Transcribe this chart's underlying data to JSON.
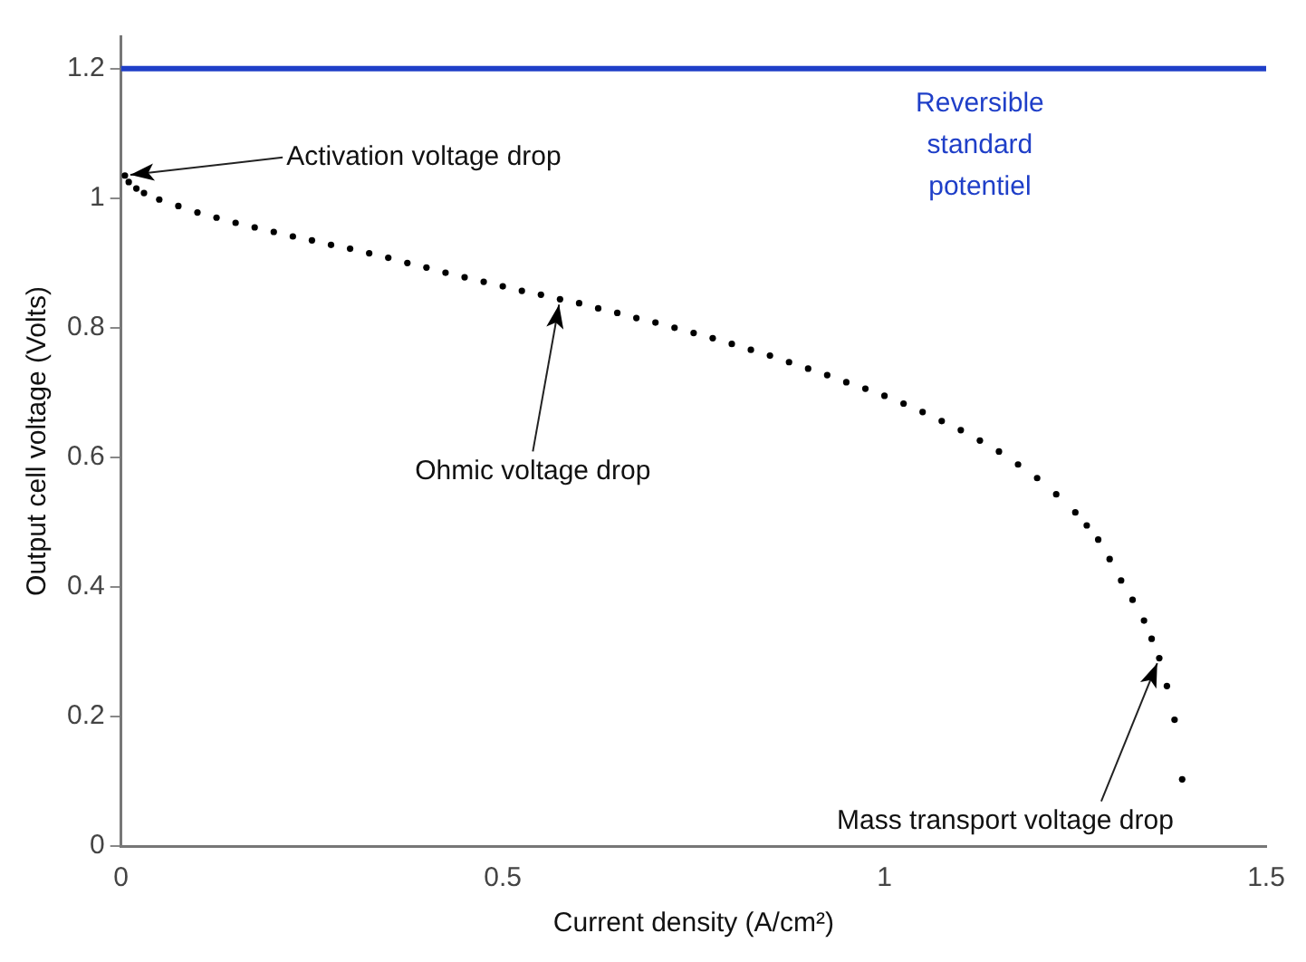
{
  "chart_data": {
    "type": "scatter",
    "xlabel": "Current density (A/cm²)",
    "ylabel": "Output cell voltage (Volts)",
    "x": [
      0.005,
      0.01,
      0.02,
      0.03,
      0.05,
      0.075,
      0.1,
      0.125,
      0.15,
      0.175,
      0.2,
      0.225,
      0.25,
      0.275,
      0.3,
      0.325,
      0.35,
      0.375,
      0.4,
      0.425,
      0.45,
      0.475,
      0.5,
      0.525,
      0.55,
      0.575,
      0.6,
      0.625,
      0.65,
      0.675,
      0.7,
      0.725,
      0.75,
      0.775,
      0.8,
      0.825,
      0.85,
      0.875,
      0.9,
      0.925,
      0.95,
      0.975,
      1.0,
      1.025,
      1.05,
      1.075,
      1.1,
      1.125,
      1.15,
      1.175,
      1.2,
      1.225,
      1.25,
      1.265,
      1.28,
      1.295,
      1.31,
      1.325,
      1.34,
      1.35,
      1.36,
      1.37,
      1.38,
      1.39
    ],
    "series": [
      {
        "color": "#000000",
        "values": [
          1.035,
          1.025,
          1.015,
          1.008,
          0.998,
          0.988,
          0.978,
          0.97,
          0.962,
          0.955,
          0.948,
          0.941,
          0.935,
          0.928,
          0.922,
          0.915,
          0.908,
          0.9,
          0.893,
          0.885,
          0.878,
          0.871,
          0.864,
          0.857,
          0.851,
          0.844,
          0.838,
          0.83,
          0.823,
          0.815,
          0.808,
          0.8,
          0.792,
          0.784,
          0.775,
          0.766,
          0.757,
          0.747,
          0.737,
          0.727,
          0.716,
          0.706,
          0.695,
          0.683,
          0.67,
          0.656,
          0.642,
          0.626,
          0.609,
          0.589,
          0.568,
          0.543,
          0.515,
          0.495,
          0.473,
          0.443,
          0.41,
          0.38,
          0.348,
          0.32,
          0.29,
          0.247,
          0.195,
          0.103
        ]
      }
    ],
    "marker": "circle",
    "xlim": [
      0,
      1.5
    ],
    "xticks": [
      0,
      0.5,
      1,
      1.5
    ],
    "ylim": [
      0,
      1.25
    ],
    "yticks": [
      0,
      0.2,
      0.4,
      0.6,
      0.8,
      1,
      1.2
    ],
    "grid": false,
    "legend": false,
    "ref_lines": [
      {
        "axis": "y",
        "value": 1.2,
        "label": "Reversible standard potentiel",
        "color": "#1f3fc8"
      }
    ],
    "annotations": [
      {
        "text": "Activation voltage drop",
        "x": 0.005,
        "y": 1.035
      },
      {
        "text": "Ohmic voltage drop",
        "x": 0.575,
        "y": 0.844
      },
      {
        "text": "Mass transport voltage drop",
        "x": 1.36,
        "y": 0.29
      }
    ]
  }
}
